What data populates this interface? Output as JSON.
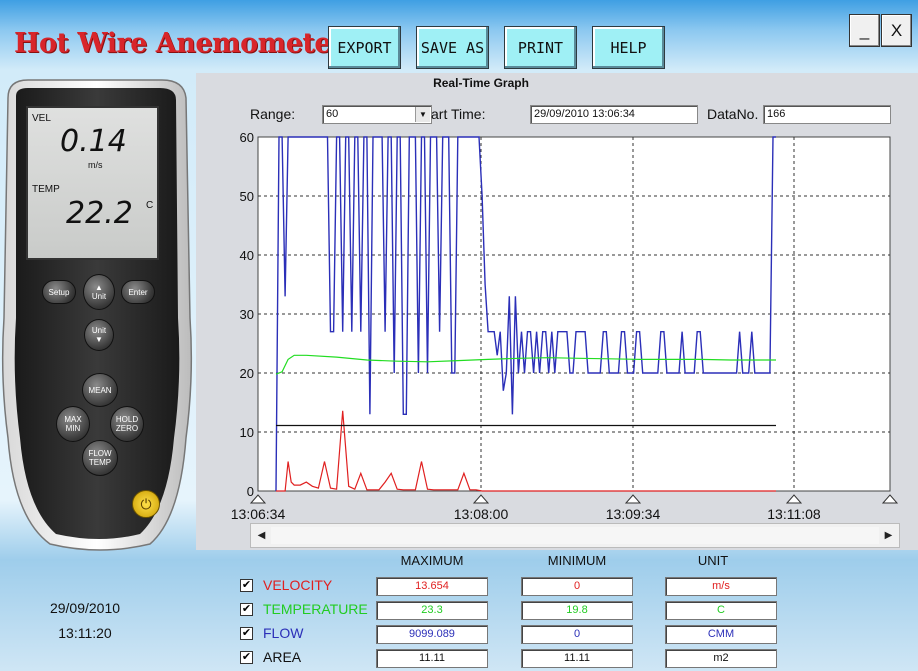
{
  "app": {
    "title": "Hot Wire Anemometer"
  },
  "toolbar": {
    "export": "EXPORT",
    "save_as": "SAVE AS",
    "print": "PRINT",
    "help": "HELP"
  },
  "window": {
    "minimize": "_",
    "close": "X"
  },
  "meter": {
    "vel_label": "VEL",
    "vel_value": "0.14",
    "vel_unit": "m/s",
    "temp_label": "TEMP",
    "temp_value": "22.2",
    "temp_unit": "C",
    "buttons": {
      "setup": "Setup",
      "unit": "Unit",
      "enter": "Enter",
      "unit2": "Unit",
      "mean": "MEAN",
      "max": "MAX",
      "min": "MIN",
      "hold": "HOLD",
      "zero": "ZERO",
      "flow": "FLOW",
      "temp": "TEMP"
    }
  },
  "graph": {
    "title": "Real-Time Graph",
    "range_label": "Range:",
    "range_value": "60",
    "start_time_label": "art Time:",
    "start_time_value": "29/09/2010 13:06:34",
    "datano_label": "DataNo.",
    "datano_value": "166"
  },
  "chart_data": {
    "type": "line",
    "title": "Real-Time Graph",
    "ylim": [
      0,
      60
    ],
    "yticks": [
      "60",
      "50",
      "40",
      "30",
      "20",
      "10",
      "0"
    ],
    "xticks": [
      "13:06:34",
      "13:08:00",
      "13:09:34",
      "13:11:08"
    ],
    "grid": true,
    "colors": {
      "flow": "#2b2fb8",
      "temperature": "#22dd22",
      "velocity": "#e02020",
      "area": "#111111"
    },
    "series": [
      {
        "key": "flow",
        "x": [
          0,
          1,
          2,
          3,
          4,
          5,
          6,
          7,
          8,
          9,
          10,
          11,
          12,
          13,
          14,
          15,
          16,
          17,
          18,
          19,
          20,
          21,
          22,
          23,
          24,
          25,
          26,
          27,
          28,
          29,
          30,
          31,
          32,
          33,
          34,
          35,
          36,
          37,
          38,
          39,
          40,
          41,
          42,
          43,
          44,
          45,
          46,
          47,
          48,
          49,
          50,
          51,
          52,
          53,
          54,
          55,
          56,
          57,
          58,
          59,
          60,
          61,
          62,
          63,
          64,
          65,
          66,
          67,
          68,
          69,
          70,
          71,
          72,
          73,
          74,
          75,
          76,
          77,
          78,
          79,
          80,
          81,
          82,
          83,
          84,
          85,
          86,
          87,
          88,
          89,
          90,
          91,
          92,
          93,
          94,
          95,
          96,
          97,
          98,
          99,
          100,
          101,
          102,
          103,
          104,
          105,
          106,
          107,
          108,
          109,
          110,
          111,
          112,
          113,
          114,
          115,
          116,
          117,
          118,
          119,
          120,
          121,
          122,
          123,
          124,
          125,
          126,
          127,
          128,
          129,
          130,
          131,
          132,
          133,
          134,
          135,
          136,
          137,
          138,
          139,
          140,
          141,
          142,
          143,
          144,
          145,
          146,
          147,
          148,
          149,
          150,
          151,
          152,
          153,
          154,
          155,
          156,
          157,
          158,
          159,
          160,
          161,
          162,
          163,
          164,
          165
        ],
        "y": [
          0,
          60,
          60,
          33,
          60,
          60,
          60,
          60,
          60,
          60,
          60,
          60,
          60,
          60,
          60,
          60,
          60,
          60,
          27,
          27,
          60,
          60,
          27,
          60,
          60,
          27,
          60,
          60,
          27,
          60,
          60,
          13,
          60,
          60,
          60,
          60,
          27,
          60,
          60,
          20,
          60,
          60,
          13,
          13,
          60,
          60,
          60,
          20,
          60,
          60,
          20,
          60,
          60,
          60,
          27,
          60,
          60,
          60,
          20,
          20,
          60,
          60,
          60,
          60,
          60,
          60,
          60,
          60,
          50,
          35,
          27,
          27,
          27,
          23,
          27,
          17,
          20,
          33,
          13,
          33,
          20,
          27,
          20,
          27,
          27,
          20,
          27,
          20,
          27,
          27,
          20,
          27,
          20,
          27,
          27,
          27,
          27,
          20,
          20,
          27,
          27,
          27,
          27,
          20,
          20,
          20,
          20,
          20,
          27,
          27,
          20,
          20,
          20,
          20,
          27,
          27,
          20,
          20,
          20,
          27,
          27,
          20,
          20,
          20,
          20,
          20,
          20,
          27,
          27,
          20,
          20,
          20,
          20,
          20,
          27,
          20,
          20,
          20,
          20,
          27,
          27,
          20,
          20,
          20,
          20,
          20,
          20,
          20,
          20,
          20,
          20,
          20,
          20,
          27,
          20,
          20,
          20,
          27,
          20,
          20,
          20,
          20,
          20,
          20,
          60,
          60
        ]
      },
      {
        "key": "temperature",
        "x": [
          0,
          2,
          4,
          6,
          10,
          20,
          30,
          40,
          50,
          60,
          70,
          80,
          90,
          100,
          110,
          120,
          130,
          140,
          150,
          160,
          165
        ],
        "y": [
          19.8,
          20.2,
          22.3,
          23.0,
          23.0,
          22.7,
          22.2,
          22.0,
          21.9,
          22.1,
          22.3,
          22.5,
          22.6,
          22.5,
          22.4,
          22.3,
          22.3,
          22.3,
          22.2,
          22.2,
          22.2
        ]
      },
      {
        "key": "velocity",
        "x": [
          0,
          3,
          4,
          5,
          6,
          8,
          10,
          12,
          14,
          16,
          18,
          20,
          22,
          24,
          26,
          28,
          30,
          32,
          34,
          36,
          38,
          40,
          42,
          44,
          46,
          48,
          50,
          52,
          54,
          56,
          58,
          60,
          62,
          64,
          66,
          68,
          70,
          72,
          74,
          76,
          78,
          80,
          100,
          130,
          160,
          165
        ],
        "y": [
          0,
          0,
          5,
          1.5,
          1,
          1,
          1.5,
          0.8,
          0.5,
          5,
          0.5,
          0.3,
          13.6,
          0.8,
          0.3,
          3,
          0.2,
          0.2,
          0.2,
          1.5,
          3,
          0.3,
          0.2,
          0.2,
          0.2,
          5,
          0.3,
          0.2,
          0.2,
          0.2,
          0.2,
          0.2,
          3,
          0.2,
          0.2,
          0,
          0,
          0,
          0,
          0,
          0,
          0,
          0,
          0,
          0,
          0
        ]
      },
      {
        "key": "area",
        "x": [
          0,
          165
        ],
        "y": [
          11.11,
          11.11
        ]
      }
    ]
  },
  "stats": {
    "headers": {
      "maximum": "MAXIMUM",
      "minimum": "MINIMUM",
      "unit": "UNIT"
    },
    "rows": [
      {
        "label": "VELOCITY",
        "checked": "✔",
        "max": "13.654",
        "min": "0",
        "unit": "m/s",
        "color": "#e02020"
      },
      {
        "label": "TEMPERATURE",
        "checked": "✔",
        "max": "23.3",
        "min": "19.8",
        "unit": "C",
        "color": "#22cc22"
      },
      {
        "label": "FLOW",
        "checked": "✔",
        "max": "9099.089",
        "min": "0",
        "unit": "CMM",
        "color": "#2b2fb8"
      },
      {
        "label": "AREA",
        "checked": "✔",
        "max": "11.11",
        "min": "11.11",
        "unit": "m2",
        "color": "#111111"
      }
    ]
  },
  "status": {
    "date": "29/09/2010",
    "time": "13:11:20"
  }
}
